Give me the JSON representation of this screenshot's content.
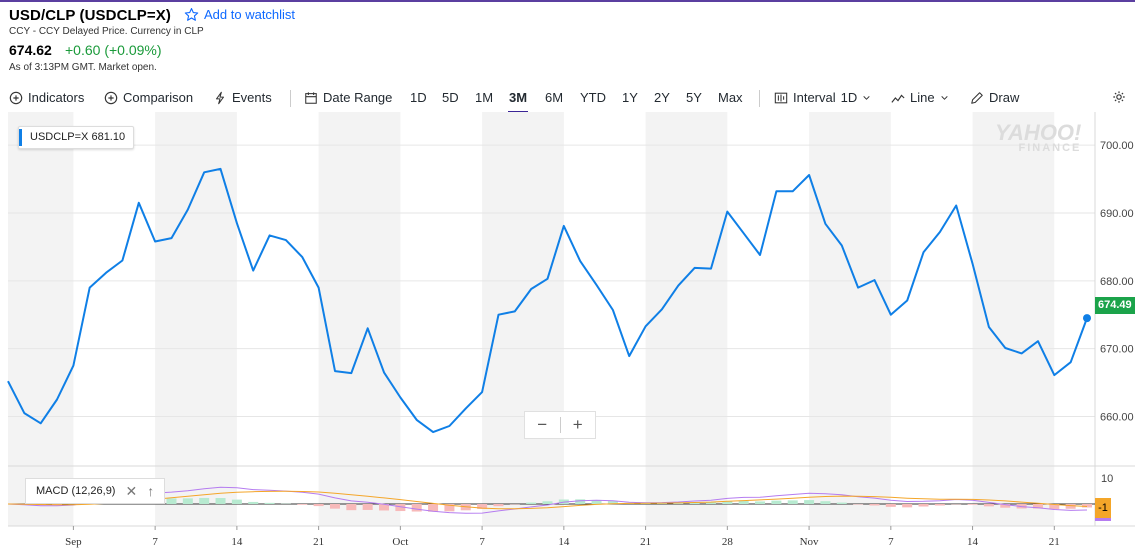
{
  "header": {
    "title": "USD/CLP (USDCLP=X)",
    "watchlist_label": "Add to watchlist",
    "subline": "CCY - CCY Delayed Price. Currency in CLP",
    "price": "674.62",
    "change": "+0.60 (+0.09%)",
    "as_of": "As of 3:13PM GMT. Market open."
  },
  "toolbar": {
    "indicators": "Indicators",
    "comparison": "Comparison",
    "events": "Events",
    "date_range": "Date Range",
    "ranges": [
      "1D",
      "5D",
      "1M",
      "3M",
      "6M",
      "YTD",
      "1Y",
      "2Y",
      "5Y",
      "Max"
    ],
    "active_range": "3M",
    "interval_label": "Interval",
    "interval_value": "1D",
    "chart_type": "Line",
    "draw": "Draw"
  },
  "chart": {
    "badge_symbol": "USDCLP=X",
    "badge_value": "681.10",
    "watermark_line1": "YAHOO!",
    "watermark_line2": "FINANCE",
    "zoom_out": "−",
    "zoom_in": "+",
    "price_tag": "674.49",
    "macd_label": "MACD (12,26,9)",
    "macd_tag": "-1",
    "macd_axis_label": "10",
    "colors": {
      "line": "#0f7fe6",
      "up": "#1ba34a",
      "accent": "#3b2596",
      "macd": "#b57cf0",
      "signal": "#f4a629"
    }
  },
  "chart_data": {
    "type": "line",
    "ylim": [
      653,
      704
    ],
    "yticks": [
      660,
      670,
      680,
      690,
      700
    ],
    "ytick_labels": [
      "660.00",
      "670.00",
      "680.00",
      "690.00",
      "700.00"
    ],
    "xtick_labels": [
      "Sep",
      "7",
      "14",
      "21",
      "Oct",
      "7",
      "14",
      "21",
      "28",
      "Nov",
      "7",
      "14",
      "21"
    ],
    "series": [
      {
        "values": [
          665.2,
          660.5,
          659.0,
          662.5,
          667.5,
          679.0,
          681.2,
          683.0,
          691.5,
          685.8,
          686.3,
          690.5,
          696.0,
          696.5,
          688.5,
          681.5,
          686.7,
          686.0,
          683.5,
          679.0,
          666.7,
          666.4,
          673.0,
          666.5,
          662.8,
          659.5,
          657.7,
          658.6,
          661.2,
          663.6,
          675.0,
          675.5,
          678.8,
          680.3,
          688.1,
          682.9,
          679.4,
          675.7,
          668.9,
          673.3,
          675.8,
          679.3,
          681.9,
          681.8,
          690.2,
          687.0,
          683.8,
          693.2,
          693.2,
          695.6,
          688.4,
          685.2,
          679.0,
          680.1,
          675.0,
          677.1,
          684.2,
          687.2,
          691.1,
          682.5,
          673.2,
          670.1,
          669.3,
          671.1,
          666.1,
          668.0,
          674.5
        ]
      }
    ]
  }
}
